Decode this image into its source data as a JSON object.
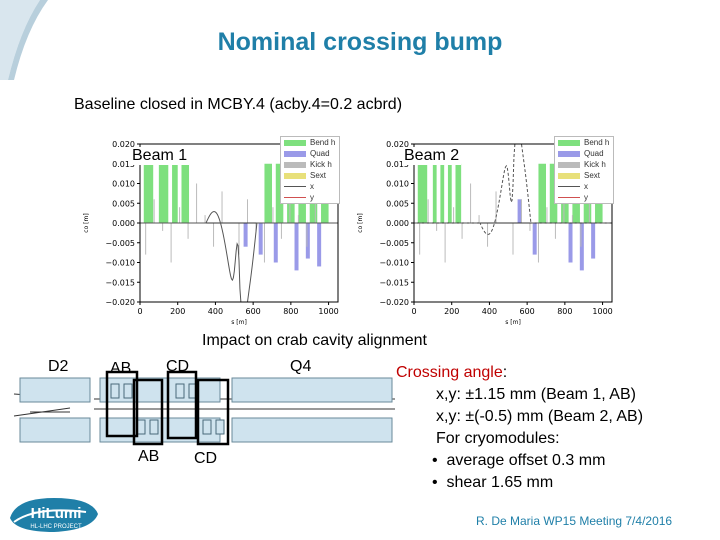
{
  "title": "Nominal crossing bump",
  "subtitle": "Baseline closed in MCBY.4 (acby.4=0.2 acbrd)",
  "plots": [
    {
      "label": "Beam 1",
      "xlabel": "s [m]",
      "ylabel": "co [m]"
    },
    {
      "label": "Beam 2",
      "xlabel": "s [m]",
      "ylabel": "co [m]"
    }
  ],
  "axis": {
    "yticks": [
      "0.020",
      "0.015",
      "0.010",
      "0.005",
      "0.000",
      "−0.005",
      "−0.010",
      "−0.015",
      "−0.020"
    ],
    "xticks": [
      "0",
      "200",
      "400",
      "600",
      "800",
      "1000"
    ]
  },
  "legend": [
    "Bend h",
    "Quad",
    "Kick h",
    "Sext",
    "x",
    "y"
  ],
  "colors": {
    "bend": "#7ee07e",
    "quad": "#9a9ae8",
    "kick": "#999999",
    "sext": "#e8e07a",
    "x": "#555555",
    "y": "#d05050",
    "title": "#1f7fa8"
  },
  "schematic": {
    "heading": "Impact on crab cavity alignment",
    "d2": "D2",
    "ab_top": "AB",
    "cd_top": "CD",
    "q4": "Q4",
    "ab_bottom": "AB",
    "cd_bottom": "CD"
  },
  "crossing": {
    "heading": "Crossing angle",
    "colon": ":",
    "line1": "x,y: ±1.15 mm (Beam 1, AB)",
    "line2": "x,y: ±(-0.5) mm (Beam 2, AB)",
    "line3": "For cryomodules:",
    "bullet1": "average offset 0.3 mm",
    "bullet2": "shear 1.65 mm"
  },
  "footer": "R. De Maria WP15 Meeting 7/4/2016",
  "logo": {
    "main": "HiLumi",
    "sub": "HL-LHC PROJECT"
  }
}
